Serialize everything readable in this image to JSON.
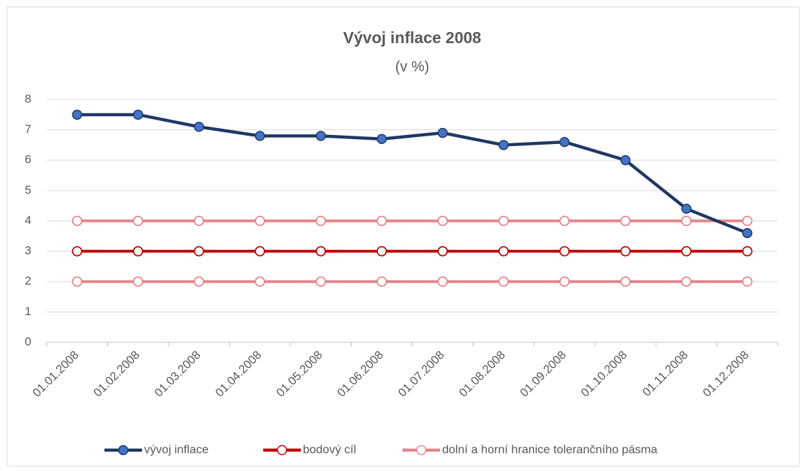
{
  "chart_data": {
    "type": "line",
    "title": "Vývoj inflace 2008",
    "subtitle": "(v %)",
    "categories": [
      "01.01.2008",
      "01.02.2008",
      "01.03.2008",
      "01.04.2008",
      "01.05.2008",
      "01.06.2008",
      "01.07.2008",
      "01.08.2008",
      "01.09.2008",
      "01.10.2008",
      "01.11.2008",
      "01.12.2008"
    ],
    "series": [
      {
        "name": "vývoj inflace",
        "color": "#1f3864",
        "marker_fill": "#4472c4",
        "values": [
          7.5,
          7.5,
          7.1,
          6.8,
          6.8,
          6.7,
          6.9,
          6.5,
          6.6,
          6.0,
          4.4,
          3.6
        ]
      },
      {
        "name": "bodový cíl",
        "color": "#c00000",
        "marker_fill": "#ffffff",
        "values": [
          3,
          3,
          3,
          3,
          3,
          3,
          3,
          3,
          3,
          3,
          3,
          3
        ]
      },
      {
        "name": "dolní a horní hranice tolerančního pásma",
        "color": "#e48489",
        "marker_fill": "#ffffff",
        "values": [
          2,
          2,
          2,
          2,
          2,
          2,
          2,
          2,
          2,
          2,
          2,
          2
        ]
      },
      {
        "color": "#e48489",
        "marker_fill": "#ffffff",
        "values": [
          4,
          4,
          4,
          4,
          4,
          4,
          4,
          4,
          4,
          4,
          4,
          4
        ]
      }
    ],
    "ylim": [
      0,
      8
    ],
    "yticks": [
      0,
      1,
      2,
      3,
      4,
      5,
      6,
      7,
      8
    ],
    "grid": true,
    "legend": "bottom"
  }
}
